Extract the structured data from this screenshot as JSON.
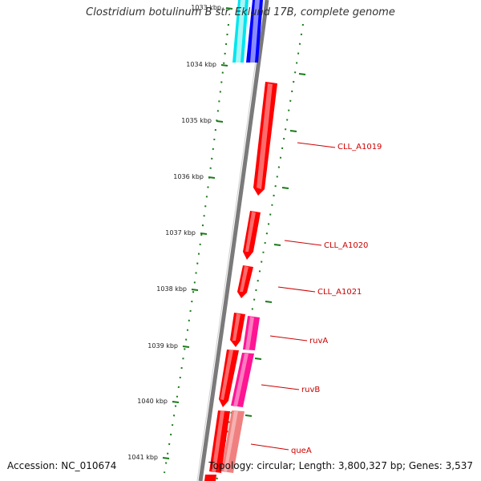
{
  "title": "Clostridium botulinum B str. Eklund 17B, complete genome",
  "footer": {
    "accession_label": "Accession:",
    "accession": "NC_010674",
    "topology_text": "Topology: circular; Length: 3,800,327 bp; Genes: 3,537"
  },
  "colors": {
    "backbone": "#7a7a7a",
    "tick": "#1a7a1a",
    "gene_red": "#ff0000",
    "gene_magenta": "#ff1493",
    "gene_pink": "#f08080",
    "gene_cyan": "#00e5ee",
    "gene_blue": "#0000ff",
    "label_red": "#cc0000"
  },
  "ticks": [
    {
      "label": "1033 kbp"
    },
    {
      "label": "1034 kbp"
    },
    {
      "label": "1035 kbp"
    },
    {
      "label": "1036 kbp"
    },
    {
      "label": "1037 kbp"
    },
    {
      "label": "1038 kbp"
    },
    {
      "label": "1039 kbp"
    },
    {
      "label": "1040 kbp"
    },
    {
      "label": "1041 kbp"
    }
  ],
  "gene_labels": [
    {
      "text": "CLL_A1019"
    },
    {
      "text": "CLL_A1020"
    },
    {
      "text": "CLL_A1021"
    },
    {
      "text": "ruvA"
    },
    {
      "text": "ruvB"
    },
    {
      "text": "queA"
    }
  ]
}
